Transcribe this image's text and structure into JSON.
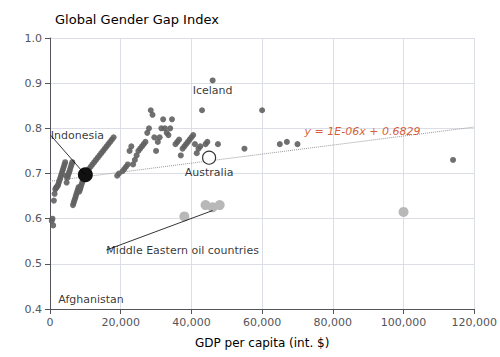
{
  "chart_data": {
    "type": "scatter",
    "title": "Global Gender Gap Index",
    "xlabel": "GDP per capita (int. $)",
    "xlim": [
      0,
      120000
    ],
    "ylim": [
      0.4,
      1.0
    ],
    "xticks": [
      0,
      {
        "value": 20000,
        "label": "20,000"
      },
      {
        "value": 40000,
        "label": "40,000"
      },
      {
        "value": 60000,
        "label": "60,000"
      },
      {
        "value": 80000,
        "label": "80,000"
      },
      {
        "value": 100000,
        "label": "100,000"
      },
      {
        "value": 120000,
        "label": "120,000"
      }
    ],
    "yticks": [
      0.4,
      0.5,
      0.6,
      0.7,
      0.8,
      0.9,
      {
        "value": 1,
        "label": "1.0"
      }
    ],
    "grid": true,
    "series": [
      {
        "color": "#606060",
        "marker": "circle",
        "values": [
          [
            500,
            0.595
          ],
          [
            700,
            0.6
          ],
          [
            900,
            0.585
          ],
          [
            1100,
            0.64
          ],
          [
            1300,
            0.655
          ],
          [
            1500,
            0.665
          ],
          [
            1700,
            0.668
          ],
          [
            1900,
            0.67
          ],
          [
            2100,
            0.672
          ],
          [
            2300,
            0.675
          ],
          [
            2500,
            0.68
          ],
          [
            2700,
            0.685
          ],
          [
            2900,
            0.69
          ],
          [
            3100,
            0.695
          ],
          [
            3300,
            0.7
          ],
          [
            3500,
            0.705
          ],
          [
            3700,
            0.71
          ],
          [
            3900,
            0.715
          ],
          [
            4100,
            0.72
          ],
          [
            4300,
            0.725
          ],
          [
            4500,
            0.695
          ],
          [
            4700,
            0.68
          ],
          [
            4900,
            0.69
          ],
          [
            5100,
            0.695
          ],
          [
            5300,
            0.7
          ],
          [
            5500,
            0.705
          ],
          [
            5700,
            0.71
          ],
          [
            5900,
            0.715
          ],
          [
            6100,
            0.72
          ],
          [
            6300,
            0.725
          ],
          [
            6500,
            0.63
          ],
          [
            6700,
            0.635
          ],
          [
            6900,
            0.64
          ],
          [
            7100,
            0.645
          ],
          [
            7300,
            0.65
          ],
          [
            7500,
            0.655
          ],
          [
            7700,
            0.66
          ],
          [
            7900,
            0.665
          ],
          [
            8100,
            0.67
          ],
          [
            8300,
            0.66
          ],
          [
            8500,
            0.665
          ],
          [
            8700,
            0.67
          ],
          [
            8900,
            0.675
          ],
          [
            9100,
            0.68
          ],
          [
            9300,
            0.685
          ],
          [
            9500,
            0.69
          ],
          [
            9700,
            0.695
          ],
          [
            9900,
            0.7
          ],
          [
            10500,
            0.705
          ],
          [
            11000,
            0.71
          ],
          [
            11500,
            0.715
          ],
          [
            12000,
            0.72
          ],
          [
            12500,
            0.725
          ],
          [
            13000,
            0.73
          ],
          [
            13500,
            0.735
          ],
          [
            14000,
            0.74
          ],
          [
            14500,
            0.745
          ],
          [
            15000,
            0.75
          ],
          [
            15500,
            0.755
          ],
          [
            16000,
            0.76
          ],
          [
            16500,
            0.765
          ],
          [
            17000,
            0.77
          ],
          [
            17500,
            0.775
          ],
          [
            18000,
            0.78
          ],
          [
            19000,
            0.695
          ],
          [
            19500,
            0.7
          ],
          [
            20500,
            0.705
          ],
          [
            21000,
            0.71
          ],
          [
            21500,
            0.715
          ],
          [
            22000,
            0.72
          ],
          [
            22500,
            0.75
          ],
          [
            23000,
            0.76
          ],
          [
            23500,
            0.72
          ],
          [
            24000,
            0.73
          ],
          [
            24500,
            0.74
          ],
          [
            25000,
            0.75
          ],
          [
            25500,
            0.755
          ],
          [
            26000,
            0.76
          ],
          [
            26500,
            0.765
          ],
          [
            27000,
            0.77
          ],
          [
            27500,
            0.79
          ],
          [
            28000,
            0.8
          ],
          [
            28500,
            0.84
          ],
          [
            29000,
            0.83
          ],
          [
            29500,
            0.78
          ],
          [
            30000,
            0.75
          ],
          [
            30500,
            0.77
          ],
          [
            31000,
            0.78
          ],
          [
            31500,
            0.8
          ],
          [
            32000,
            0.82
          ],
          [
            32500,
            0.8
          ],
          [
            33000,
            0.79
          ],
          [
            33500,
            0.785
          ],
          [
            34000,
            0.8
          ],
          [
            34500,
            0.82
          ],
          [
            35500,
            0.765
          ],
          [
            36000,
            0.77
          ],
          [
            36500,
            0.775
          ],
          [
            37000,
            0.74
          ],
          [
            37500,
            0.755
          ],
          [
            38000,
            0.76
          ],
          [
            38500,
            0.765
          ],
          [
            39000,
            0.77
          ],
          [
            39500,
            0.775
          ],
          [
            40000,
            0.78
          ],
          [
            40500,
            0.785
          ],
          [
            41000,
            0.765
          ],
          [
            41500,
            0.745
          ],
          [
            42000,
            0.755
          ],
          [
            42500,
            0.76
          ],
          [
            43000,
            0.84
          ],
          [
            44000,
            0.765
          ],
          [
            44500,
            0.77
          ],
          [
            46000,
            0.906
          ],
          [
            47500,
            0.765
          ],
          [
            55000,
            0.755
          ],
          [
            60000,
            0.84
          ],
          [
            65000,
            0.765
          ],
          [
            67000,
            0.77
          ],
          [
            70000,
            0.765
          ],
          [
            114000,
            0.73
          ]
        ]
      },
      {
        "color": "#b8b8b8",
        "marker": "circle",
        "values": [
          [
            38000,
            0.605
          ],
          [
            44000,
            0.63
          ],
          [
            46000,
            0.625
          ],
          [
            48000,
            0.63
          ],
          [
            100000,
            0.615
          ]
        ]
      },
      {
        "color": "#111111",
        "marker": "circle",
        "values": [
          [
            10000,
            0.697
          ]
        ]
      },
      {
        "color": "#000000",
        "marker": "hollow",
        "values": [
          [
            45000,
            0.735
          ]
        ]
      },
      {
        "type": "line",
        "color": "#999999",
        "line_style": "dotted",
        "values": [
          [
            0,
            0.6829
          ],
          [
            120000,
            0.8029
          ]
        ]
      }
    ],
    "annotations": [
      {
        "text": "Iceland",
        "x": 46000,
        "y": 0.906
      },
      {
        "text": "Indonesia",
        "x": 10000,
        "y": 0.697
      },
      {
        "text": "Australia",
        "x": 45000,
        "y": 0.735
      },
      {
        "text": "Afghanistan",
        "x": 1200,
        "y": 0.435
      },
      {
        "text": "Middle Eastern oil countries",
        "x": 46000,
        "y": 0.618
      },
      {
        "text": "y = 1E-06x + 0.6829",
        "x": 72000,
        "y": 0.794,
        "color": "#cc3300"
      }
    ]
  }
}
